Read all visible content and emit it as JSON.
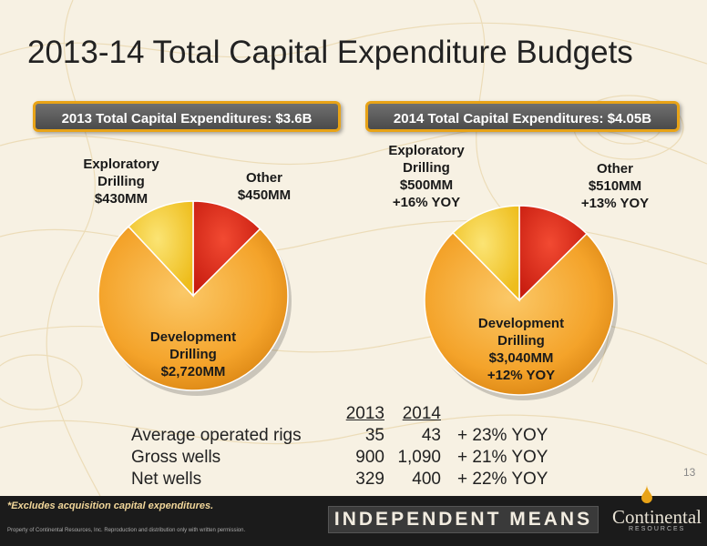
{
  "slide": {
    "title": "2013-14 Total Capital Expenditure Budgets",
    "page_number": "13",
    "footnote": "*Excludes acquisition capital expenditures.",
    "copyright": "Property of Continental Resources, Inc. Reproduction and distribution only with written permission.",
    "brand_banner": "INDEPENDENT MEANS",
    "logo_name": "Continental",
    "logo_sub": "RESOURCES"
  },
  "colors": {
    "development": "#f4a32a",
    "exploratory": "#f6cf2a",
    "other": "#e0281a",
    "pill_border": "#e8a317"
  },
  "chart_data": [
    {
      "type": "pie",
      "title": "2013 Total Capital Expenditures: $3.6B",
      "slices": [
        {
          "name": "Other",
          "value": 450,
          "label_lines": [
            "Other",
            "$450MM"
          ]
        },
        {
          "name": "Development Drilling",
          "value": 2720,
          "label_lines": [
            "Development",
            "Drilling",
            "$2,720MM"
          ]
        },
        {
          "name": "Exploratory Drilling",
          "value": 430,
          "label_lines": [
            "Exploratory",
            "Drilling",
            "$430MM"
          ]
        }
      ]
    },
    {
      "type": "pie",
      "title": "2014 Total Capital Expenditures: $4.05B",
      "slices": [
        {
          "name": "Other",
          "value": 510,
          "label_lines": [
            "Other",
            "$510MM",
            "+13% YOY"
          ]
        },
        {
          "name": "Development Drilling",
          "value": 3040,
          "label_lines": [
            "Development",
            "Drilling",
            "$3,040MM",
            "+12% YOY"
          ]
        },
        {
          "name": "Exploratory Drilling",
          "value": 500,
          "label_lines": [
            "Exploratory",
            "Drilling",
            "$500MM",
            "+16% YOY"
          ]
        }
      ]
    },
    {
      "type": "table",
      "columns": [
        "",
        "2013",
        "2014",
        ""
      ],
      "rows": [
        [
          "Average operated rigs",
          "35",
          "43",
          "+ 23% YOY"
        ],
        [
          "Gross wells",
          "900",
          "1,090",
          "+ 21% YOY"
        ],
        [
          "Net wells",
          "329",
          "400",
          "+ 22% YOY"
        ]
      ]
    }
  ]
}
